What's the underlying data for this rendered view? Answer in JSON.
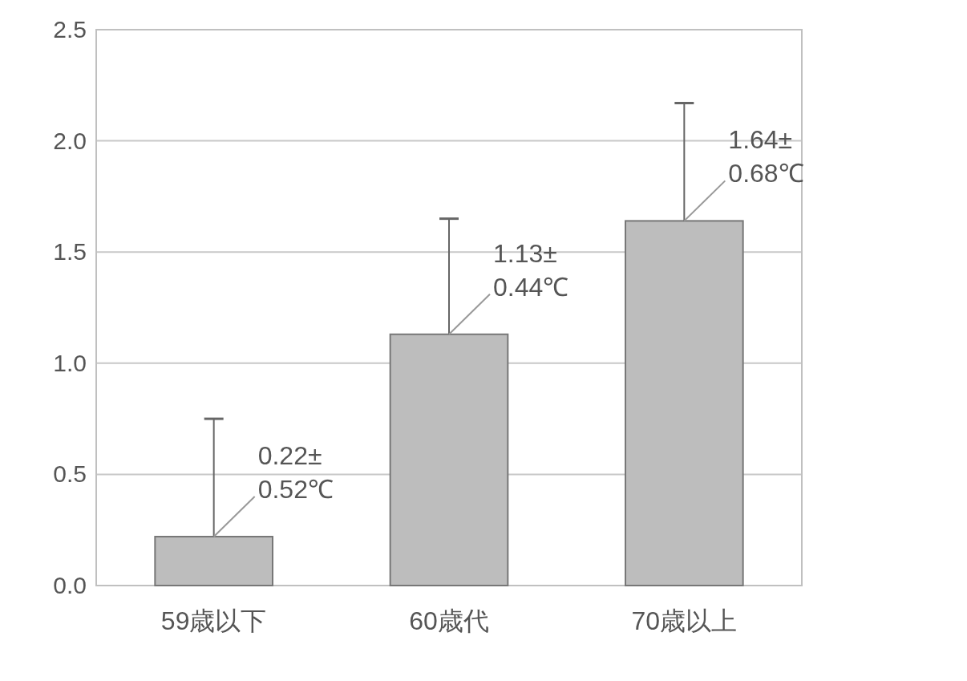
{
  "chart_data": {
    "type": "bar",
    "categories": [
      "59歳以下",
      "60歳代",
      "70歳以上"
    ],
    "values": [
      0.22,
      1.13,
      1.64
    ],
    "errors": [
      [
        0.22,
        0.75
      ],
      [
        1.13,
        1.65
      ],
      [
        1.64,
        2.17
      ]
    ],
    "color": "#bdbdbd",
    "ylim": [
      0,
      2.5
    ],
    "yticks": [
      {
        "value": 0,
        "label": "0.0"
      },
      {
        "value": 0.5,
        "label": "0.5"
      },
      {
        "value": 1,
        "label": "1.0"
      },
      {
        "value": 1.5,
        "label": "1.5"
      },
      {
        "value": 2,
        "label": "2.0"
      },
      {
        "value": 2.5,
        "label": "2.5"
      }
    ],
    "grid": "y",
    "annotations": [
      {
        "text": "0.22±\n0.52℃",
        "x": "59歳以下",
        "y": 0.22
      },
      {
        "text": "1.13±\n0.44℃",
        "x": "60歳代",
        "y": 1.13
      },
      {
        "text": "1.64±\n0.68℃",
        "x": "70歳以上",
        "y": 1.64
      }
    ]
  }
}
